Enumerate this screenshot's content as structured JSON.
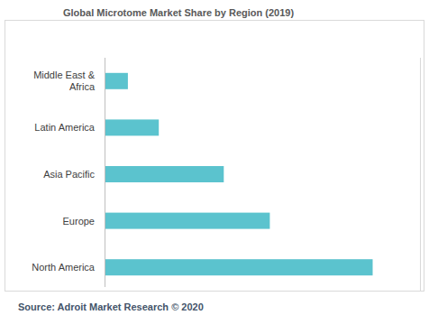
{
  "chart_data": {
    "type": "bar",
    "title": "Global Microtome Market Share by Region (2019)",
    "source": "Source: Adroit Market Research © 2020",
    "orientation": "horizontal",
    "categories": [
      "Middle East & Africa",
      "Latin America",
      "Asia Pacific",
      "Europe",
      "North America"
    ],
    "values": [
      3.7,
      8.6,
      18.9,
      26.2,
      42.5
    ],
    "color": "#5bc3ce",
    "xlim": [
      0,
      50
    ],
    "xticks": [],
    "grid": false,
    "tick_labels": "y",
    "data_labels": false
  }
}
